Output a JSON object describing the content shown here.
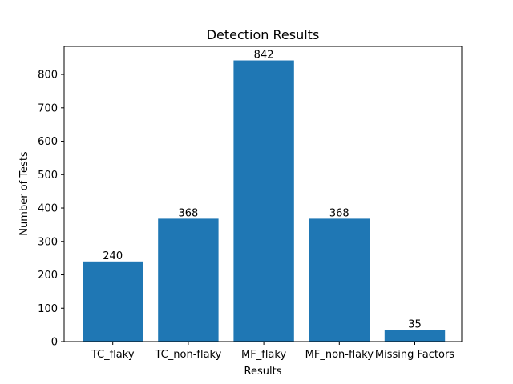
{
  "chart_data": {
    "type": "bar",
    "title": "Detection Results",
    "xlabel": "Results",
    "ylabel": "Number of Tests",
    "categories": [
      "TC_flaky",
      "TC_non-flaky",
      "MF_flaky",
      "MF_non-flaky",
      "Missing Factors"
    ],
    "values": [
      240,
      368,
      842,
      368,
      35
    ],
    "data_labels": [
      "240",
      "368",
      "842",
      "368",
      "35"
    ],
    "ylim": [
      0,
      884
    ],
    "yticks": [
      0,
      100,
      200,
      300,
      400,
      500,
      600,
      700,
      800
    ],
    "bar_color": "#1f77b4",
    "grid": false,
    "legend": "none"
  }
}
